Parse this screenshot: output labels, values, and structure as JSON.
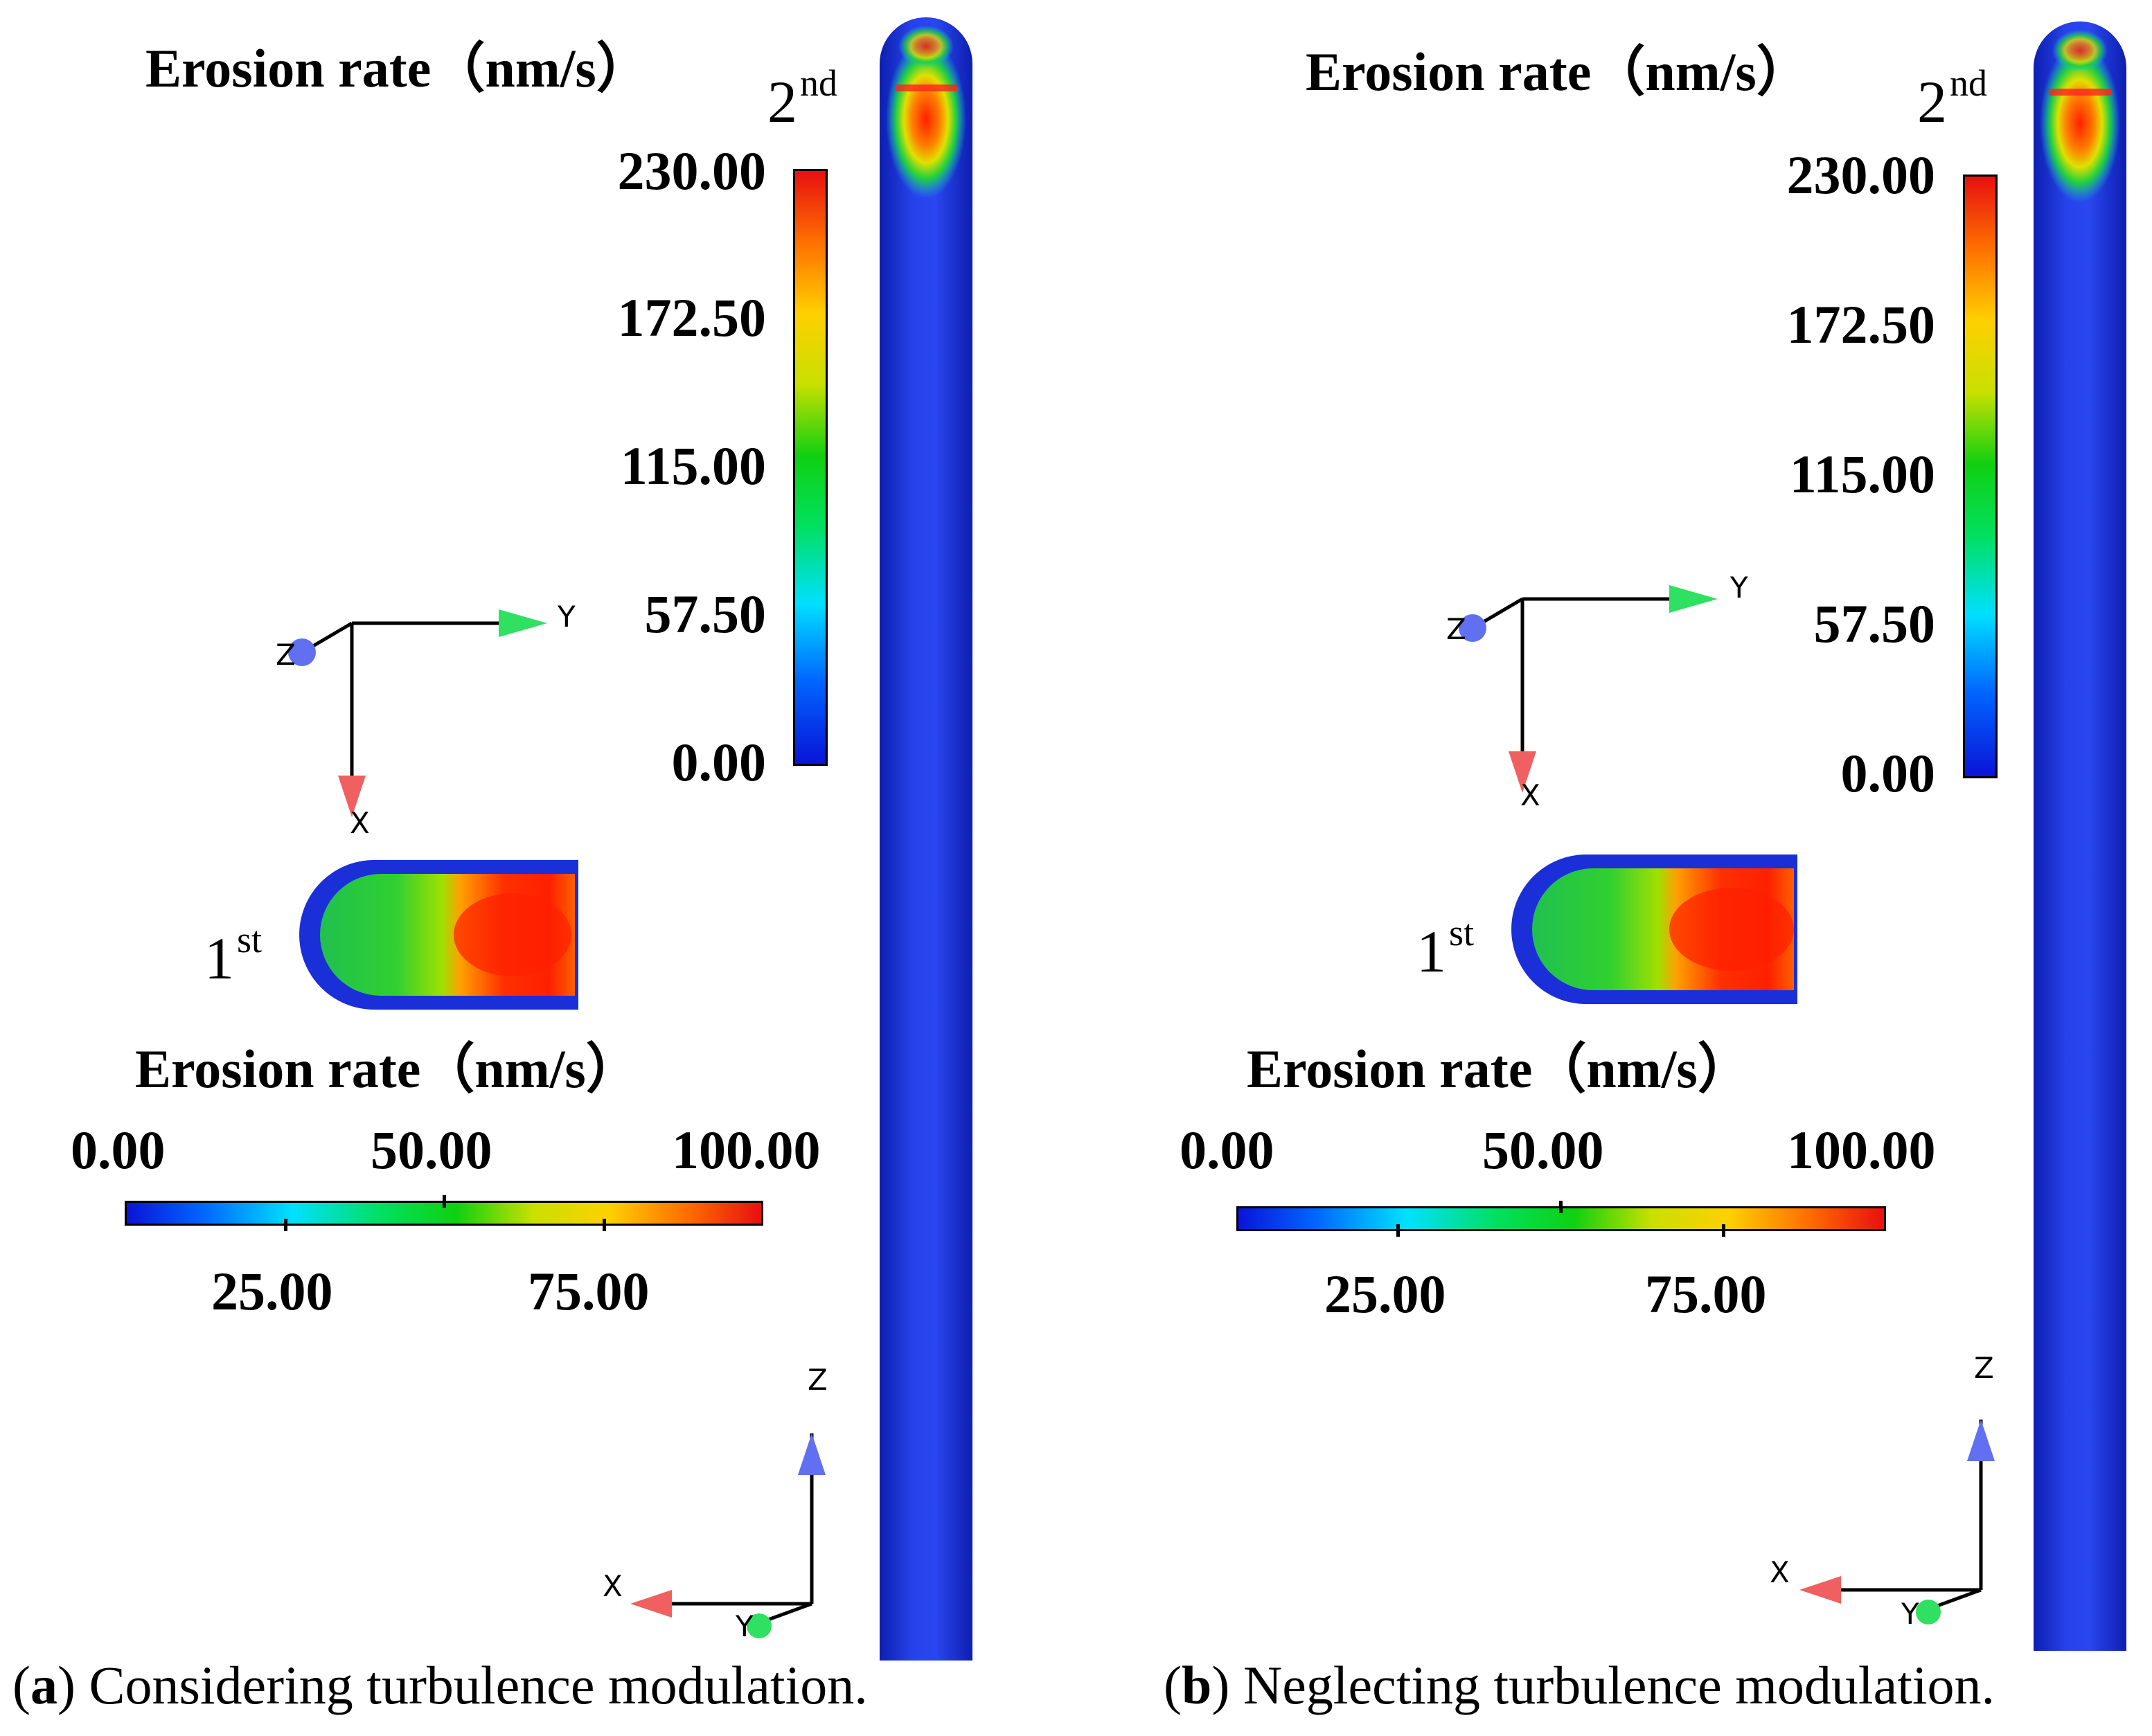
{
  "panel_a": {
    "caption_letter": "a",
    "caption_text": " Considering turbulence modulation.",
    "pipe_label": {
      "base": "2",
      "sup": "nd"
    },
    "elbow_label": {
      "base": "1",
      "sup": "st"
    },
    "vertical_colorbar": {
      "title": "Erosion rate（nm/s）",
      "ticks": [
        "230.00",
        "172.50",
        "115.00",
        "57.50",
        "0.00"
      ]
    },
    "horizontal_colorbar": {
      "title": "Erosion rate（nm/s）",
      "top_ticks": [
        "0.00",
        "50.00",
        "100.00"
      ],
      "bottom_ticks": [
        "25.00",
        "75.00"
      ]
    },
    "axes_top": {
      "z": "Z",
      "y": "Y",
      "x": "X"
    },
    "axes_bottom": {
      "z": "Z",
      "x": "X",
      "y": "Y"
    }
  },
  "panel_b": {
    "caption_letter": "b",
    "caption_text": " Neglecting turbulence modulation.",
    "pipe_label": {
      "base": "2",
      "sup": "nd"
    },
    "elbow_label": {
      "base": "1",
      "sup": "st"
    },
    "vertical_colorbar": {
      "title": "Erosion rate（nm/s）",
      "ticks": [
        "230.00",
        "172.50",
        "115.00",
        "57.50",
        "0.00"
      ]
    },
    "horizontal_colorbar": {
      "title": "Erosion rate（nm/s）",
      "top_ticks": [
        "0.00",
        "50.00",
        "100.00"
      ],
      "bottom_ticks": [
        "25.00",
        "75.00"
      ]
    },
    "axes_top": {
      "z": "Z",
      "y": "Y",
      "x": "X"
    },
    "axes_bottom": {
      "z": "Z",
      "x": "X",
      "y": "Y"
    }
  },
  "colors": {
    "pipe_blue": "#1a2fd8",
    "axis_x": "#f06060",
    "axis_y": "#30e060",
    "axis_z": "#6070f0"
  }
}
